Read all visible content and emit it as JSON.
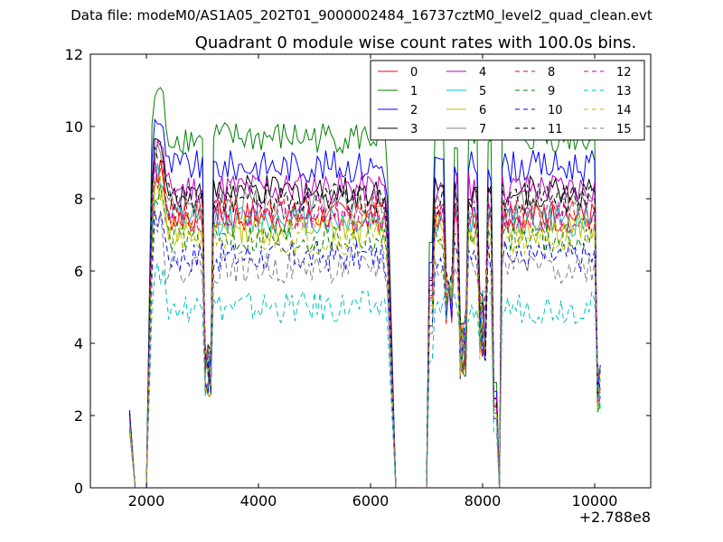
{
  "figure": {
    "suptitle": "Data file: modeM0/AS1A05_202T01_9000002484_16737cztM0_level2_quad_clean.evt",
    "title": "Quadrant 0 module wise count rates with 100.0s bins."
  },
  "chart_data": {
    "type": "line",
    "title": "Quadrant 0 module wise count rates with 100.0s bins.",
    "xlabel": "",
    "ylabel": "",
    "x_offset_label": "+2.788e8",
    "xlim": [
      1000,
      11000
    ],
    "ylim": [
      0,
      12
    ],
    "xticks": [
      2000,
      4000,
      6000,
      8000,
      10000
    ],
    "xtick_labels": [
      "2000",
      "4000",
      "6000",
      "8000",
      "10000"
    ],
    "yticks": [
      0,
      2,
      4,
      6,
      8,
      10,
      12
    ],
    "ytick_labels": [
      "0",
      "2",
      "4",
      "6",
      "8",
      "10",
      "12"
    ],
    "grid": false,
    "legend_position": "top-right",
    "legend_columns": 4,
    "segments": [
      {
        "x_start": 1700,
        "x_end": 2000,
        "note": "initial rise and drop to zero"
      },
      {
        "x_start": 2100,
        "x_end": 6400,
        "note": "main exposure with dip near 3100"
      },
      {
        "x_start": 6500,
        "x_end": 7000,
        "note": "zero rate gap"
      },
      {
        "x_start": 7100,
        "x_end": 8200,
        "note": "exposure with dips"
      },
      {
        "x_start": 8300,
        "x_end": 8300,
        "note": "zero rate gap"
      },
      {
        "x_start": 8400,
        "x_end": 10100,
        "note": "final exposure"
      }
    ],
    "series": [
      {
        "name": "0",
        "color": "#ff0000",
        "dash": "solid",
        "level": 7.5
      },
      {
        "name": "1",
        "color": "#008000",
        "dash": "solid",
        "level": 9.7
      },
      {
        "name": "2",
        "color": "#0000ff",
        "dash": "solid",
        "level": 8.9
      },
      {
        "name": "3",
        "color": "#000000",
        "dash": "solid",
        "level": 8.2
      },
      {
        "name": "4",
        "color": "#bf00bf",
        "dash": "solid",
        "level": 8.3
      },
      {
        "name": "5",
        "color": "#00bfbf",
        "dash": "solid",
        "level": 7.4
      },
      {
        "name": "6",
        "color": "#bfbf00",
        "dash": "solid",
        "level": 7.2
      },
      {
        "name": "7",
        "color": "#808080",
        "dash": "solid",
        "level": 7.8
      },
      {
        "name": "8",
        "color": "#ff0000",
        "dash": "dashed",
        "level": 7.6
      },
      {
        "name": "9",
        "color": "#008000",
        "dash": "dashed",
        "level": 6.9
      },
      {
        "name": "10",
        "color": "#0000ff",
        "dash": "dashed",
        "level": 6.4
      },
      {
        "name": "11",
        "color": "#000000",
        "dash": "dashed",
        "level": 8.0
      },
      {
        "name": "12",
        "color": "#bf00bf",
        "dash": "dashed",
        "level": 7.5
      },
      {
        "name": "13",
        "color": "#00bfbf",
        "dash": "dashed",
        "level": 5.0
      },
      {
        "name": "14",
        "color": "#bfbf00",
        "dash": "dashed",
        "level": 6.9
      },
      {
        "name": "15",
        "color": "#808080",
        "dash": "dashed",
        "level": 6.1
      }
    ]
  }
}
